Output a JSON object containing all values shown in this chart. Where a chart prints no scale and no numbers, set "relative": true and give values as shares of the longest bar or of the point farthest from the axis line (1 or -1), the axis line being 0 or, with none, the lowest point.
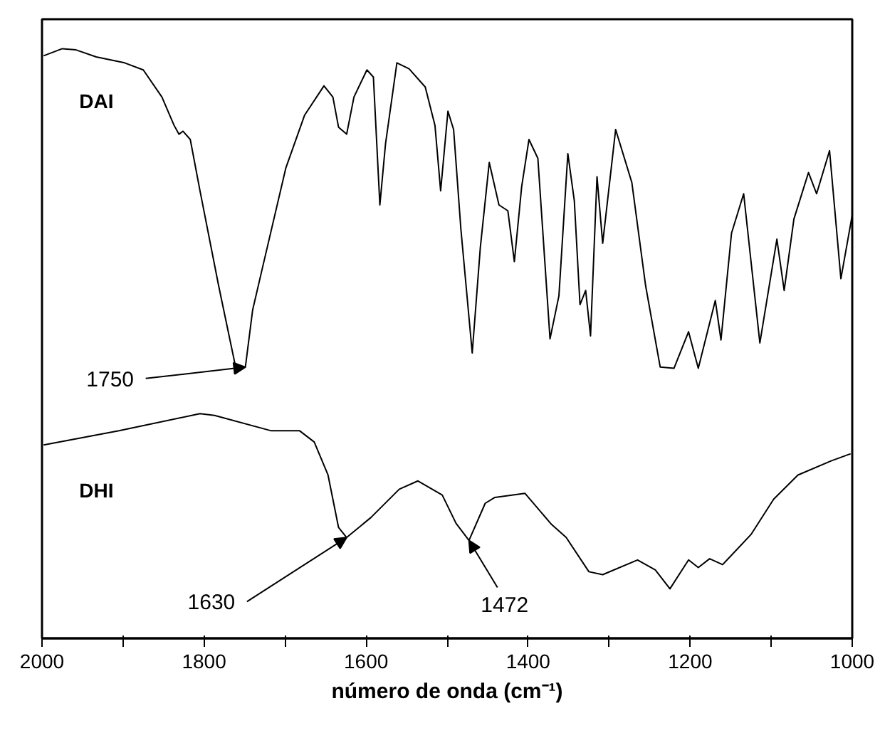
{
  "chart_data": {
    "type": "line",
    "relative": true,
    "xlabel": "número de onda (cm⁻¹)",
    "xlim": [
      2000,
      1000
    ],
    "xticks": [
      2000,
      {
        "value": 1900,
        "label": null
      },
      1800,
      {
        "value": 1700,
        "label": null
      },
      1600,
      {
        "value": 1500,
        "label": null
      },
      1400,
      {
        "value": 1300,
        "label": null
      },
      1200,
      {
        "value": 1100,
        "label": null
      },
      1000
    ],
    "grid": false,
    "line_style": "solid",
    "marker": "none",
    "series": [
      {
        "name": "DAI",
        "color": "#000000",
        "x": [
          1998,
          1975,
          1958,
          1933,
          1898,
          1875,
          1852,
          1837,
          1831,
          1826,
          1817,
          1805,
          1782,
          1761,
          1749,
          1740,
          1729,
          1699,
          1676,
          1652,
          1641,
          1634,
          1624,
          1615,
          1599,
          1591,
          1583,
          1576,
          1562,
          1547,
          1527,
          1515,
          1508,
          1499,
          1492,
          1483,
          1469,
          1459,
          1448,
          1436,
          1425,
          1417,
          1408,
          1399,
          1388,
          1373,
          1362,
          1351,
          1343,
          1336,
          1329,
          1323,
          1315,
          1308,
          1292,
          1272,
          1255,
          1237,
          1220,
          1202,
          1190,
          1169,
          1162,
          1149,
          1134,
          1114,
          1093,
          1084,
          1072,
          1054,
          1044,
          1028,
          1014,
          1000
        ],
        "values": [
          0.988,
          1.0,
          0.998,
          0.986,
          0.976,
          0.964,
          0.918,
          0.87,
          0.855,
          0.86,
          0.846,
          0.759,
          0.598,
          0.46,
          0.46,
          0.557,
          0.622,
          0.798,
          0.887,
          0.937,
          0.918,
          0.867,
          0.855,
          0.918,
          0.964,
          0.952,
          0.735,
          0.839,
          0.976,
          0.966,
          0.935,
          0.87,
          0.759,
          0.894,
          0.863,
          0.694,
          0.484,
          0.663,
          0.807,
          0.735,
          0.725,
          0.639,
          0.766,
          0.846,
          0.814,
          0.508,
          0.581,
          0.822,
          0.742,
          0.566,
          0.59,
          0.513,
          0.783,
          0.67,
          0.863,
          0.773,
          0.598,
          0.46,
          0.458,
          0.52,
          0.458,
          0.573,
          0.506,
          0.687,
          0.754,
          0.501,
          0.677,
          0.59,
          0.711,
          0.79,
          0.754,
          0.827,
          0.61,
          0.718
        ]
      },
      {
        "name": "DHI",
        "color": "#000000",
        "x": [
          1998,
          1905,
          1805,
          1787,
          1717,
          1682,
          1664,
          1647,
          1634,
          1624,
          1594,
          1559,
          1536,
          1506,
          1489,
          1473,
          1453,
          1441,
          1404,
          1371,
          1353,
          1325,
          1308,
          1265,
          1243,
          1225,
          1202,
          1190,
          1176,
          1160,
          1125,
          1097,
          1067,
          1026,
          1002
        ],
        "values": [
          0.328,
          0.352,
          0.381,
          0.378,
          0.352,
          0.352,
          0.333,
          0.277,
          0.188,
          0.171,
          0.205,
          0.253,
          0.267,
          0.243,
          0.195,
          0.166,
          0.229,
          0.239,
          0.246,
          0.193,
          0.171,
          0.113,
          0.108,
          0.133,
          0.116,
          0.084,
          0.133,
          0.12,
          0.135,
          0.125,
          0.176,
          0.236,
          0.277,
          0.301,
          0.313
        ]
      }
    ],
    "annotations": [
      {
        "text": "1750",
        "x": 1749,
        "y": 0.46
      },
      {
        "text": "1630",
        "x": 1624,
        "y": 0.171
      },
      {
        "text": "1472",
        "x": 1473,
        "y": 0.166
      }
    ]
  }
}
